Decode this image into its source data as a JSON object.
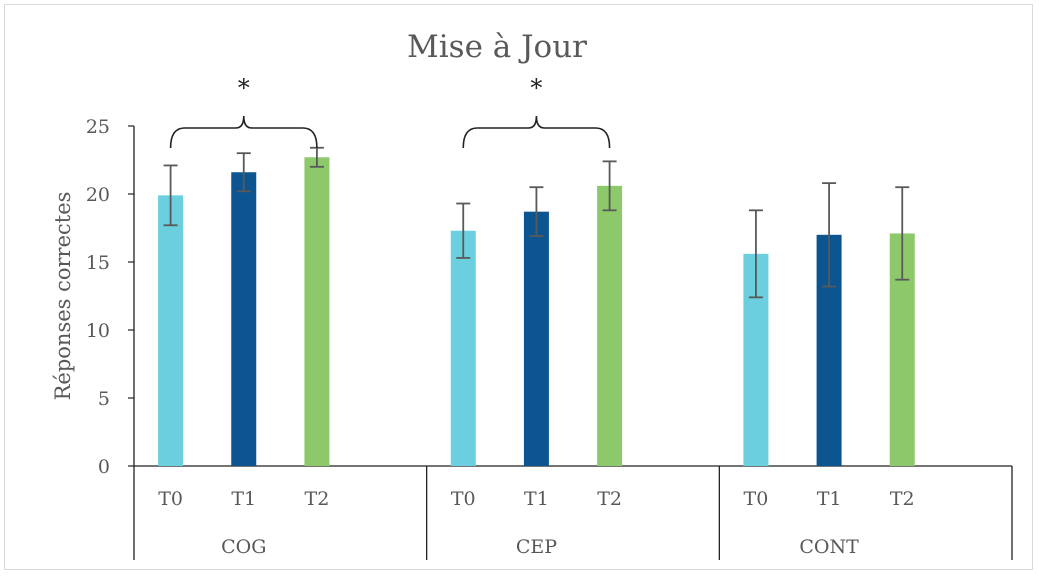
{
  "chart_data": {
    "type": "bar",
    "title": "Mise à Jour",
    "ylabel": "Réponses correctes",
    "xlabel": "",
    "ylim": [
      0,
      25
    ],
    "yticks": [
      0,
      5,
      10,
      15,
      20,
      25
    ],
    "groups": [
      "COG",
      "CEP",
      "CONT"
    ],
    "sub_categories": [
      "T0",
      "T1",
      "T2"
    ],
    "series": [
      {
        "name": "T0",
        "color": "#6ccfdf",
        "values": [
          19.9,
          17.3,
          15.6
        ],
        "errors": [
          2.2,
          2.0,
          3.2
        ]
      },
      {
        "name": "T1",
        "color": "#0d5590",
        "values": [
          21.6,
          18.7,
          17.0
        ],
        "errors": [
          1.4,
          1.8,
          3.8
        ]
      },
      {
        "name": "T2",
        "color": "#8dc96a",
        "values": [
          22.7,
          20.6,
          17.1
        ],
        "errors": [
          0.7,
          1.8,
          3.4
        ]
      }
    ],
    "significance": [
      {
        "group": "COG",
        "from": "T0",
        "to": "T2",
        "label": "*"
      },
      {
        "group": "CEP",
        "from": "T0",
        "to": "T2",
        "label": "*"
      }
    ],
    "grid": false,
    "legend": "none"
  }
}
